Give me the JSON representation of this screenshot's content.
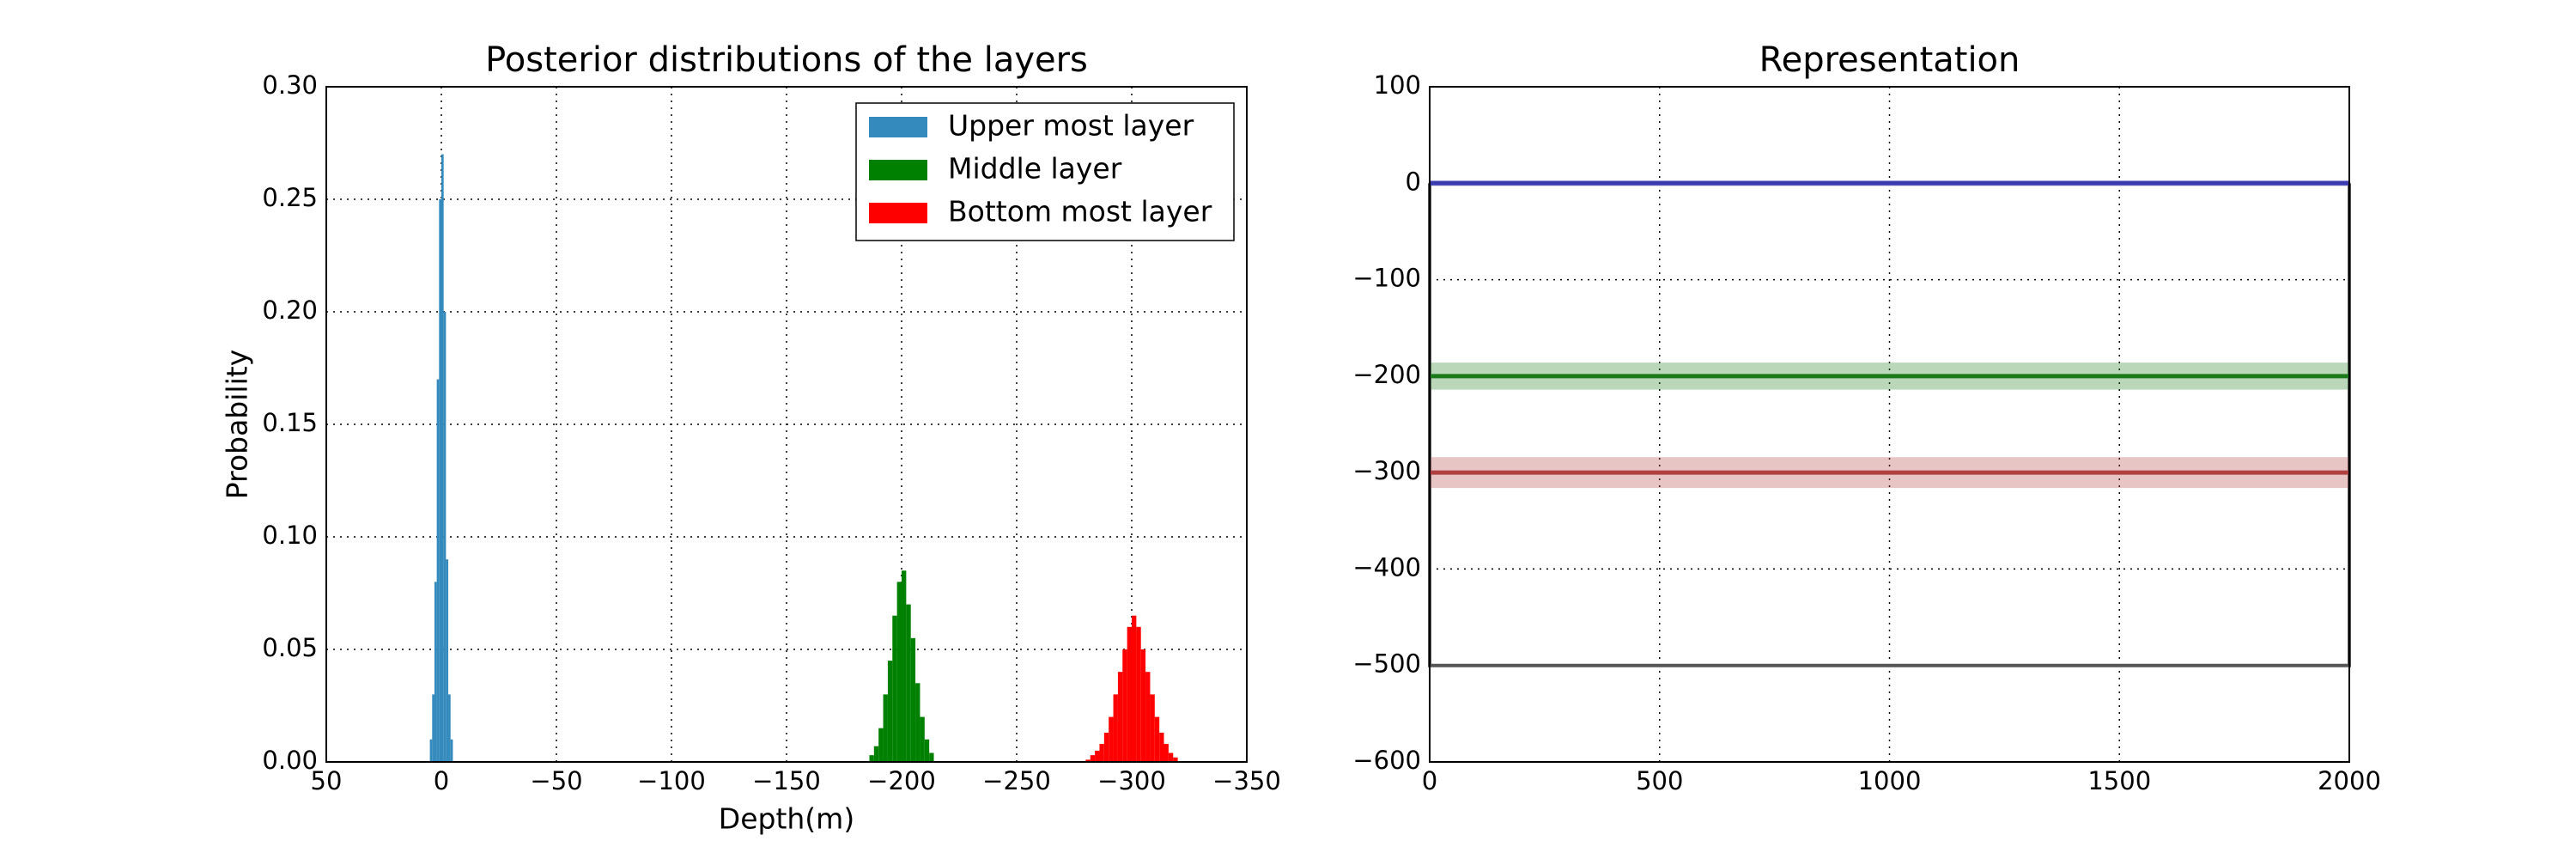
{
  "chart_data": [
    {
      "type": "histogram",
      "title": "Posterior distributions of the layers",
      "xlabel": "Depth(m)",
      "ylabel": "Probability",
      "xlim": [
        50,
        -350
      ],
      "xticks": [
        50,
        0,
        {
          "value": -50,
          "label": "−50"
        },
        {
          "value": -100,
          "label": "−100"
        },
        {
          "value": -150,
          "label": "−150"
        },
        {
          "value": -200,
          "label": "−200"
        },
        {
          "value": -250,
          "label": "−250"
        },
        {
          "value": -300,
          "label": "−300"
        },
        {
          "value": -350,
          "label": "−350"
        }
      ],
      "ylim": [
        0,
        0.3
      ],
      "yticks": [
        {
          "value": 0,
          "label": "0.00"
        },
        {
          "value": 0.05,
          "label": "0.05"
        },
        {
          "value": 0.1,
          "label": "0.10"
        },
        {
          "value": 0.15,
          "label": "0.15"
        },
        {
          "value": 0.2,
          "label": "0.20"
        },
        {
          "value": 0.25,
          "label": "0.25"
        },
        {
          "value": 0.3,
          "label": "0.30"
        }
      ],
      "grid": true,
      "legend": "upper right",
      "series": [
        {
          "name": "Upper most layer",
          "color": "#348abd",
          "bins": [
            -5,
            -4,
            -3,
            -2,
            -1,
            0,
            1,
            2,
            3,
            4,
            5
          ],
          "values": [
            0.01,
            0.03,
            0.09,
            0.2,
            0.27,
            0.25,
            0.17,
            0.08,
            0.03,
            0.01
          ]
        },
        {
          "name": "Middle layer",
          "color": "#008000",
          "bins": [
            -214,
            -212,
            -210,
            -208,
            -206,
            -204,
            -202,
            -200,
            -198,
            -196,
            -194,
            -192,
            -190,
            -188,
            -186
          ],
          "values": [
            0.004,
            0.01,
            0.02,
            0.035,
            0.055,
            0.07,
            0.085,
            0.08,
            0.065,
            0.045,
            0.03,
            0.015,
            0.007,
            0.003
          ]
        },
        {
          "name": "Bottom most layer",
          "color": "#ff0000",
          "bins": [
            -320,
            -318,
            -316,
            -314,
            -312,
            -310,
            -308,
            -306,
            -304,
            -302,
            -300,
            -298,
            -296,
            -294,
            -292,
            -290,
            -288,
            -286,
            -284,
            -282,
            -280
          ],
          "values": [
            0.002,
            0.004,
            0.008,
            0.013,
            0.02,
            0.03,
            0.04,
            0.05,
            0.06,
            0.065,
            0.06,
            0.05,
            0.04,
            0.03,
            0.02,
            0.013,
            0.008,
            0.005,
            0.003,
            0.001
          ]
        }
      ]
    },
    {
      "type": "line",
      "title": "Representation",
      "xlim": [
        0,
        2000
      ],
      "xticks": [
        0,
        500,
        1000,
        1500,
        2000
      ],
      "ylim": [
        -600,
        100
      ],
      "yticks": [
        {
          "value": -600,
          "label": "−600"
        },
        {
          "value": -500,
          "label": "−500"
        },
        {
          "value": -400,
          "label": "−400"
        },
        {
          "value": -300,
          "label": "−300"
        },
        {
          "value": -200,
          "label": "−200"
        },
        {
          "value": -100,
          "label": "−100"
        },
        0,
        100
      ],
      "grid": true,
      "series": [
        {
          "color": "#555555",
          "x": [
            0,
            0,
            2000,
            2000
          ],
          "values": [
            0,
            -500,
            -500,
            0
          ]
        },
        {
          "color": "#3b3bb0",
          "x": [
            0,
            2000
          ],
          "values": [
            0,
            0
          ],
          "bands": [
            -3,
            3
          ]
        },
        {
          "color": "#1a7a1a",
          "x": [
            0,
            2000
          ],
          "values": [
            -200,
            -200
          ],
          "bands": [
            -214,
            -186
          ]
        },
        {
          "color": "#b04040",
          "x": [
            0,
            2000
          ],
          "values": [
            -300,
            -300
          ],
          "bands": [
            -316,
            -284
          ]
        }
      ]
    }
  ]
}
